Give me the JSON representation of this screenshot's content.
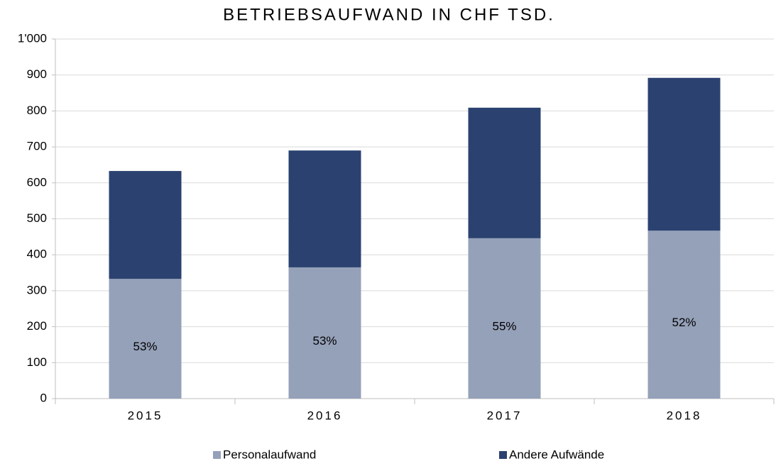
{
  "chart_data": {
    "type": "stacked_bar",
    "title": "BETRIEBSAUFWAND IN CHF TSD.",
    "categories": [
      "2015",
      "2016",
      "2017",
      "2018"
    ],
    "series": [
      {
        "name": "Personalaufwand",
        "color": "#95a1b9",
        "values": [
          333,
          365,
          446,
          467
        ]
      },
      {
        "name": "Andere Aufwände",
        "color": "#2b4270",
        "values": [
          300,
          325,
          363,
          425
        ]
      }
    ],
    "share_labels": [
      "53%",
      "53%",
      "55%",
      "52%"
    ],
    "ylim": [
      0,
      1000
    ],
    "yticks": [
      0,
      100,
      200,
      300,
      400,
      500,
      600,
      700,
      800,
      900,
      {
        "value": 1000,
        "label": "1'000"
      }
    ],
    "grid": true,
    "legend": "bottom"
  }
}
